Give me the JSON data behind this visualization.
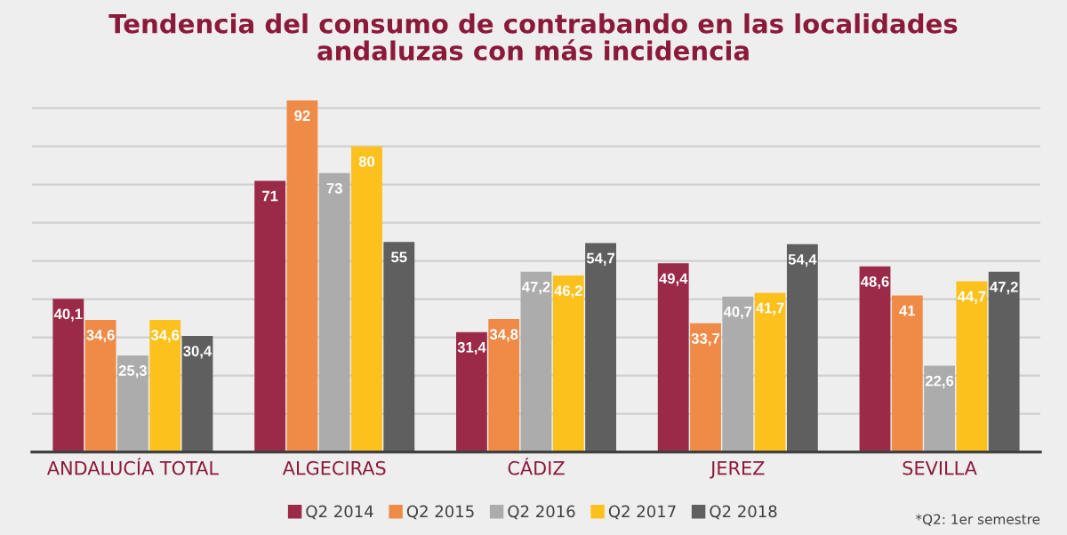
{
  "chart_data": {
    "type": "bar",
    "title": "Tendencia del consumo de contrabando en las localidades\nandaluzas con más incidencia",
    "categories": [
      "ANDALUCÍA TOTAL",
      "ALGECIRAS",
      "CÁDIZ",
      "JEREZ",
      "SEVILLA"
    ],
    "series": [
      {
        "name": "Q2 2014",
        "color": "#9b2a48",
        "values": [
          40.1,
          71,
          31.4,
          49.4,
          48.6
        ],
        "value_labels": [
          "40,1",
          "71",
          "31,4",
          "49,4",
          "48,6"
        ]
      },
      {
        "name": "Q2 2015",
        "color": "#ef8a47",
        "values": [
          34.6,
          92,
          34.8,
          33.7,
          41
        ],
        "value_labels": [
          "34,6",
          "92",
          "34,8",
          "33,7",
          "41"
        ]
      },
      {
        "name": "Q2 2016",
        "color": "#acacac",
        "values": [
          25.3,
          73,
          47.2,
          40.7,
          22.6
        ],
        "value_labels": [
          "25,3",
          "73",
          "47,2",
          "40,7",
          "22,6"
        ]
      },
      {
        "name": "Q2 2017",
        "color": "#fdc11d",
        "values": [
          34.6,
          80,
          46.2,
          41.7,
          44.7
        ],
        "value_labels": [
          "34,6",
          "80",
          "46,2",
          "41,7",
          "44,7"
        ]
      },
      {
        "name": "Q2 2018",
        "color": "#5f5f5f",
        "values": [
          30.4,
          55,
          54.7,
          54.4,
          47.2
        ],
        "value_labels": [
          "30,4",
          "55",
          "54,7",
          "54,4",
          "47,2"
        ]
      }
    ],
    "yticks": [
      {
        "value": 0,
        "label": null
      },
      {
        "value": 10,
        "label": null
      },
      {
        "value": 20,
        "label": null
      },
      {
        "value": 30,
        "label": null
      },
      {
        "value": 40,
        "label": null
      },
      {
        "value": 50,
        "label": null
      },
      {
        "value": 60,
        "label": null
      },
      {
        "value": 70,
        "label": null
      },
      {
        "value": 80,
        "label": null
      },
      {
        "value": 90,
        "label": null
      }
    ],
    "tick_labels": "x",
    "grid": "y",
    "legend": "bottom",
    "annotations": [
      "*Q2: 1er semestre"
    ]
  }
}
